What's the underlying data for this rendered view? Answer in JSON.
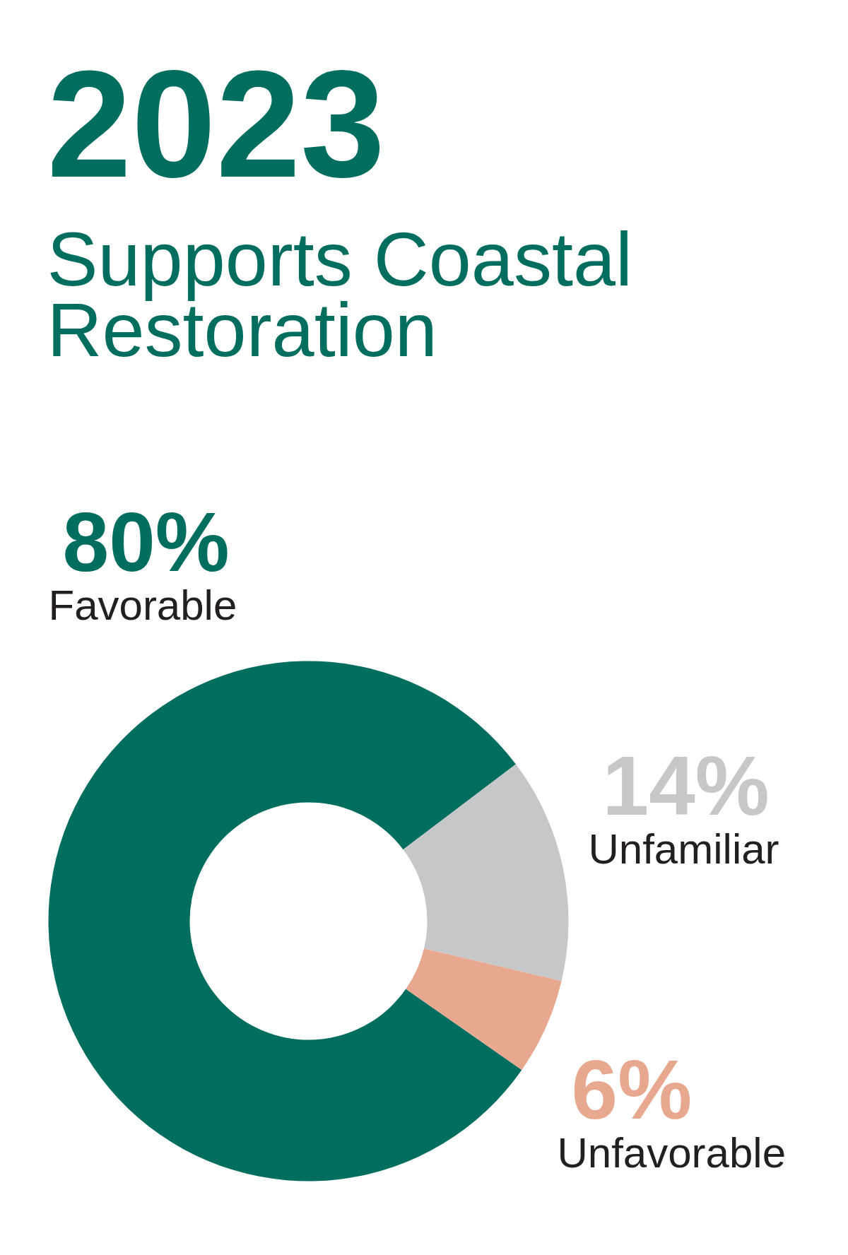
{
  "chart_data": {
    "type": "donut",
    "title": "2023",
    "subtitle": "Supports Coastal Restoration",
    "categories": [
      "Favorable",
      "Unfamiliar",
      "Unfavorable"
    ],
    "values": [
      80,
      14,
      6
    ],
    "colors": [
      "#006e5f",
      "#c5c7c8",
      "#e8a890"
    ],
    "value_labels": [
      "80%",
      "14%",
      "6%"
    ]
  }
}
